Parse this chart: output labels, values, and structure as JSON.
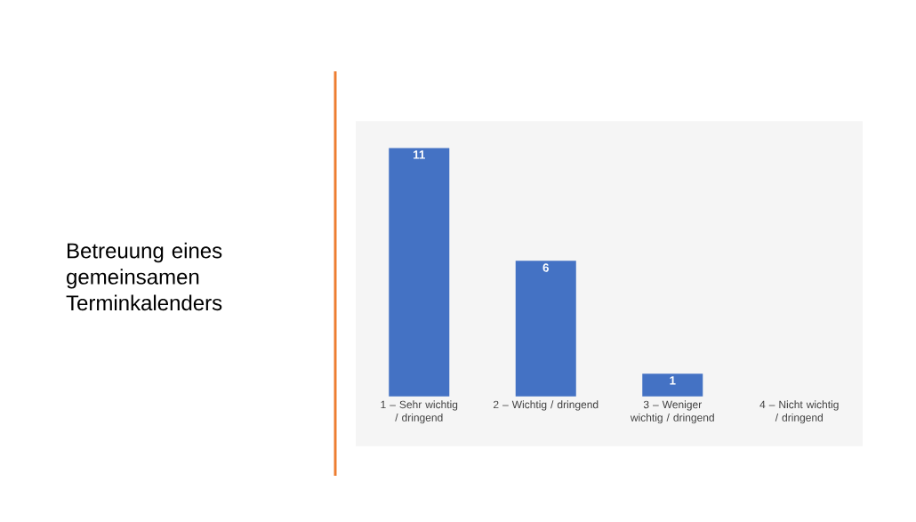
{
  "chart_data": {
    "type": "bar",
    "title": "Betreuung eines gemeinsamen Terminkalenders",
    "categories": [
      "1 – Sehr wichtig / dringend",
      "2 – Wichtig / dringend",
      "3 – Weniger wichtig / dringend",
      "4 – Nicht wichtig / dringend"
    ],
    "values": [
      11,
      6,
      1,
      0
    ],
    "value_labels": [
      "11",
      "6",
      "1",
      null
    ],
    "color": "#4472c4"
  }
}
